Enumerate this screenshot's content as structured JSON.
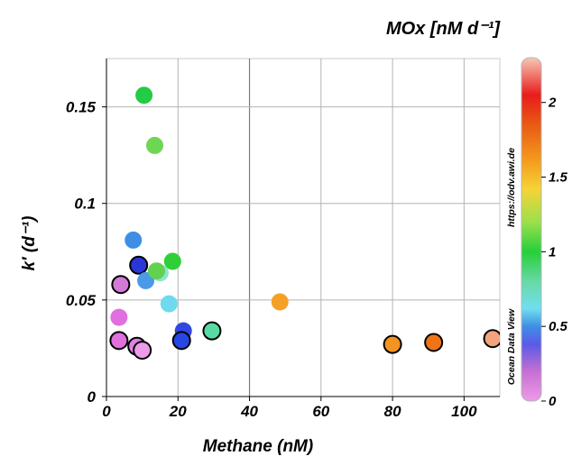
{
  "chart_data": {
    "type": "scatter",
    "title": "MOx [nM d⁻¹]",
    "xlabel": "Methane (nM)",
    "ylabel": "k′ (d⁻¹)",
    "xlim": [
      0,
      110
    ],
    "ylim": [
      0,
      0.175
    ],
    "x_ticks": [
      "0",
      "20",
      "40",
      "60",
      "80",
      "100"
    ],
    "y_ticks": [
      "0",
      "0.05",
      "0.1",
      "0.15"
    ],
    "x_tick_values": [
      0,
      20,
      40,
      60,
      80,
      100
    ],
    "y_tick_values": [
      0,
      0.05,
      0.1,
      0.15
    ],
    "grid": true,
    "colorbar": {
      "label": "MOx [nM d⁻¹]",
      "range": [
        0,
        2.3
      ],
      "ticks": [
        "0",
        "0.5",
        "1",
        "1.5",
        "2"
      ],
      "tick_values": [
        0,
        0.5,
        1,
        1.5,
        2
      ],
      "stops": [
        {
          "v": 0.0,
          "c": "#ef9be8"
        },
        {
          "v": 0.2,
          "c": "#c46fd2"
        },
        {
          "v": 0.38,
          "c": "#5b5ae6"
        },
        {
          "v": 0.5,
          "c": "#3f8ee6"
        },
        {
          "v": 0.62,
          "c": "#70dff0"
        },
        {
          "v": 0.8,
          "c": "#68d9a6"
        },
        {
          "v": 1.0,
          "c": "#27cf3a"
        },
        {
          "v": 1.2,
          "c": "#9be04c"
        },
        {
          "v": 1.42,
          "c": "#f6d335"
        },
        {
          "v": 1.62,
          "c": "#f5981d"
        },
        {
          "v": 1.85,
          "c": "#e85a14"
        },
        {
          "v": 2.05,
          "c": "#e81c1c"
        },
        {
          "v": 2.3,
          "c": "#f7c7b5"
        }
      ]
    },
    "points": [
      {
        "x": 10.5,
        "y": 0.156,
        "mox": 1.0,
        "outlined": false,
        "color": "#22cc44"
      },
      {
        "x": 13.5,
        "y": 0.13,
        "mox": 1.15,
        "outlined": false,
        "color": "#6ed654"
      },
      {
        "x": 7.5,
        "y": 0.081,
        "mox": 0.45,
        "outlined": false,
        "color": "#3f8ee6"
      },
      {
        "x": 9.0,
        "y": 0.068,
        "mox": 0.35,
        "outlined": true,
        "color": "#2a37d8"
      },
      {
        "x": 11.0,
        "y": 0.06,
        "mox": 0.48,
        "outlined": false,
        "color": "#4a9ae8"
      },
      {
        "x": 15.0,
        "y": 0.064,
        "mox": 0.7,
        "outlined": false,
        "color": "#8fe4d4"
      },
      {
        "x": 14.0,
        "y": 0.065,
        "mox": 1.1,
        "outlined": false,
        "color": "#62d151"
      },
      {
        "x": 18.5,
        "y": 0.07,
        "mox": 1.0,
        "outlined": false,
        "color": "#2fcf38"
      },
      {
        "x": 17.5,
        "y": 0.048,
        "mox": 0.62,
        "outlined": false,
        "color": "#6ed9ef"
      },
      {
        "x": 4.0,
        "y": 0.058,
        "mox": 0.15,
        "outlined": true,
        "color": "#d27ad6"
      },
      {
        "x": 3.5,
        "y": 0.041,
        "mox": 0.1,
        "outlined": false,
        "color": "#e070e0"
      },
      {
        "x": 3.5,
        "y": 0.029,
        "mox": 0.1,
        "outlined": true,
        "color": "#e070dc"
      },
      {
        "x": 8.5,
        "y": 0.026,
        "mox": 0.1,
        "outlined": true,
        "color": "#e080e4"
      },
      {
        "x": 10.0,
        "y": 0.024,
        "mox": 0.05,
        "outlined": true,
        "color": "#eb9be8"
      },
      {
        "x": 21.5,
        "y": 0.034,
        "mox": 0.38,
        "outlined": false,
        "color": "#3347e0"
      },
      {
        "x": 21.0,
        "y": 0.029,
        "mox": 0.35,
        "outlined": true,
        "color": "#2747e5"
      },
      {
        "x": 29.5,
        "y": 0.034,
        "mox": 0.8,
        "outlined": true,
        "color": "#58dba3"
      },
      {
        "x": 48.5,
        "y": 0.049,
        "mox": 1.6,
        "outlined": false,
        "color": "#f5a127"
      },
      {
        "x": 80.0,
        "y": 0.027,
        "mox": 1.65,
        "outlined": true,
        "color": "#f39420"
      },
      {
        "x": 91.5,
        "y": 0.028,
        "mox": 1.75,
        "outlined": true,
        "color": "#ef7418"
      },
      {
        "x": 108.0,
        "y": 0.03,
        "mox": 2.2,
        "outlined": true,
        "color": "#f3a37d"
      }
    ],
    "side_labels": {
      "source": "https://odv.awi.de",
      "software": "Ocean Data View"
    }
  }
}
